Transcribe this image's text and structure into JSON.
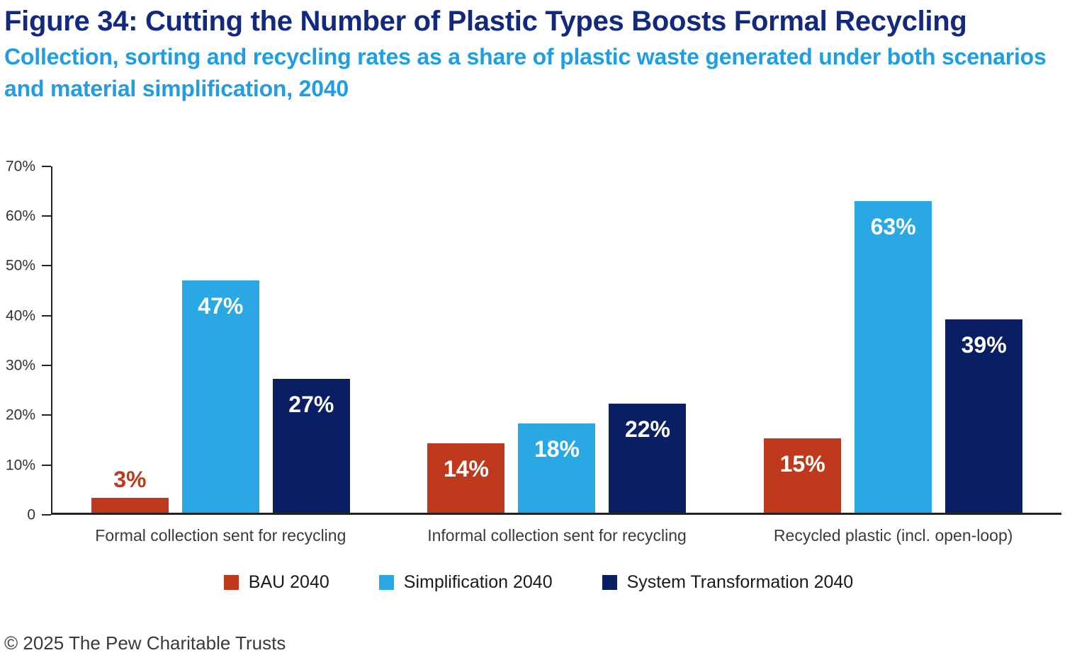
{
  "header": {
    "title": "Figure 34: Cutting the Number of Plastic Types Boosts Formal Recycling",
    "subtitle": "Collection, sorting and recycling rates as a share of plastic waste generated under both scenarios and material simplification, 2040"
  },
  "footer": {
    "copyright": "© 2025 The Pew Charitable Trusts"
  },
  "chart_data": {
    "type": "bar",
    "title": "Figure 34: Cutting the Number of Plastic Types Boosts Formal Recycling",
    "subtitle": "Collection, sorting and recycling rates as a share of plastic waste generated under both scenarios and material simplification, 2040",
    "categories": [
      "Formal collection sent for recycling",
      "Informal collection sent for recycling",
      "Recycled plastic (incl. open-loop)"
    ],
    "series": [
      {
        "name": "BAU 2040",
        "color": "#bf3a1d",
        "values": [
          3,
          14,
          15
        ]
      },
      {
        "name": "Simplification 2040",
        "color": "#29a8e4",
        "values": [
          47,
          18,
          63
        ]
      },
      {
        "name": "System Transformation 2040",
        "color": "#0a1e63",
        "values": [
          27,
          22,
          39
        ]
      }
    ],
    "ylim": [
      0,
      70
    ],
    "yticks": [
      {
        "label": "0",
        "value": 0
      },
      {
        "label": "10%",
        "value": 10
      },
      {
        "label": "20%",
        "value": 20
      },
      {
        "label": "30%",
        "value": 30
      },
      {
        "label": "40%",
        "value": 40
      },
      {
        "label": "50%",
        "value": 50
      },
      {
        "label": "60%",
        "value": 60
      },
      {
        "label": "70%",
        "value": 70
      }
    ],
    "value_label_format": "{value}%",
    "grid": false,
    "legend_position": "bottom"
  }
}
